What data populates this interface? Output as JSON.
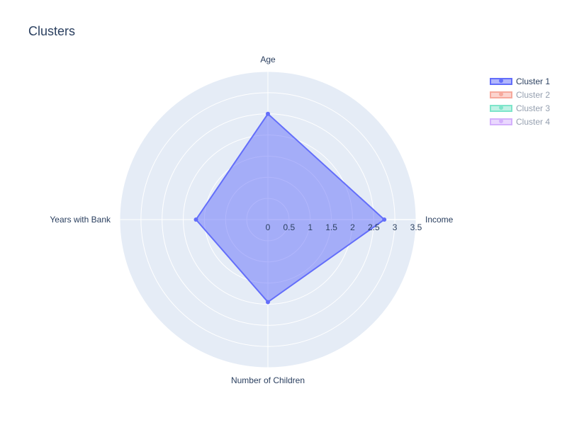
{
  "chart_data": {
    "type": "radar",
    "title": "Clusters",
    "axes": [
      "Age",
      "Income",
      "Number of Children",
      "Years with Bank"
    ],
    "radial_range": [
      0,
      3.5
    ],
    "radial_ticks": [
      "0",
      "0.5",
      "1",
      "1.5",
      "2",
      "2.5",
      "3",
      "3.5"
    ],
    "grid": true,
    "legend_position": "top-right",
    "series": [
      {
        "name": "Cluster 1",
        "values": [
          2.5,
          2.75,
          1.95,
          1.7
        ],
        "color": "#636efa",
        "visible": true
      },
      {
        "name": "Cluster 2",
        "values": [],
        "color": "#ef553b",
        "visible": false
      },
      {
        "name": "Cluster 3",
        "values": [],
        "color": "#00cc96",
        "visible": false
      },
      {
        "name": "Cluster 4",
        "values": [],
        "color": "#ab63fa",
        "visible": false
      }
    ]
  },
  "colors": {
    "polar_bg": "#e5ecf6",
    "grid": "#ffffff",
    "text": "#2a3f5f"
  }
}
